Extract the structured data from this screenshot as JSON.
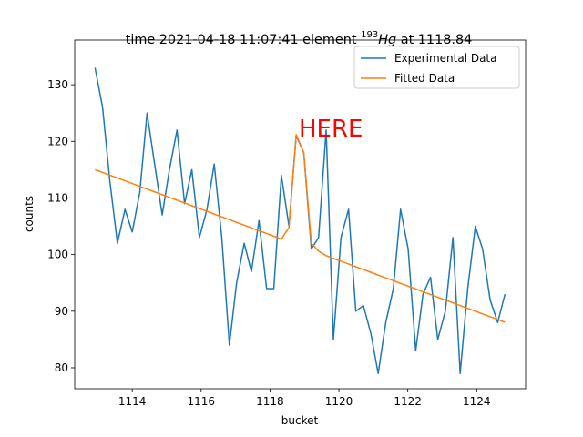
{
  "chart_data": {
    "type": "line",
    "title": {
      "prefix": "time 2021-04-18 11:07:41 element ",
      "mass": "193",
      "element": "Hg",
      "suffix": " at 1118.84"
    },
    "annotation": "HERE",
    "annotation_color": "#ff0000",
    "x_label": "bucket",
    "y_label": "counts",
    "x": [
      1112.92,
      1113.14,
      1113.35,
      1113.57,
      1113.79,
      1114.0,
      1114.22,
      1114.43,
      1114.65,
      1114.87,
      1115.08,
      1115.3,
      1115.52,
      1115.73,
      1115.95,
      1116.17,
      1116.38,
      1116.6,
      1116.82,
      1117.03,
      1117.25,
      1117.46,
      1117.68,
      1117.9,
      1118.11,
      1118.33,
      1118.55,
      1118.76,
      1118.98,
      1119.2,
      1119.41,
      1119.63,
      1119.84,
      1120.06,
      1120.28,
      1120.49,
      1120.71,
      1120.93,
      1121.14,
      1121.36,
      1121.58,
      1121.79,
      1122.01,
      1122.23,
      1122.44,
      1122.66,
      1122.87,
      1123.09,
      1123.31,
      1123.52,
      1123.74,
      1123.96,
      1124.17,
      1124.39,
      1124.61,
      1124.82
    ],
    "series": [
      {
        "name": "Experimental Data",
        "color": "#1f77b4",
        "values": [
          133,
          126,
          113,
          102,
          108,
          104,
          111,
          125,
          116,
          107,
          115,
          122,
          109,
          115,
          103,
          108,
          116,
          103,
          84,
          95,
          102,
          97,
          106,
          94,
          94,
          114,
          105,
          121,
          118,
          101,
          103,
          122,
          85,
          103,
          108,
          90,
          91,
          86,
          79,
          88,
          94,
          108,
          101,
          83,
          93,
          96,
          85,
          90,
          103,
          79,
          94,
          105,
          101,
          92,
          88,
          93
        ]
      },
      {
        "name": "Fitted Data",
        "color": "#ff7f0e",
        "values": [
          115,
          114.51,
          114.02,
          113.53,
          113.04,
          112.55,
          112.06,
          111.57,
          111.08,
          110.59,
          110.1,
          109.61,
          109.12,
          108.63,
          108.14,
          107.65,
          107.16,
          106.67,
          106.18,
          105.69,
          105.2,
          104.71,
          104.22,
          103.73,
          103.24,
          102.75,
          104.8,
          121.2,
          118,
          102,
          100.6,
          99.81,
          99.32,
          98.83,
          98.34,
          97.85,
          97.36,
          96.87,
          96.38,
          95.89,
          95.4,
          94.91,
          94.42,
          93.93,
          93.44,
          92.95,
          92.46,
          91.97,
          91.48,
          90.99,
          90.5,
          90.01,
          89.52,
          89.03,
          88.54,
          88.05
        ]
      }
    ],
    "xlim": [
      1112.33,
      1125.42
    ],
    "ylim": [
      76.3,
      137.9
    ],
    "xticks": [
      1114,
      1116,
      1118,
      1120,
      1122,
      1124
    ],
    "yticks": [
      80,
      90,
      100,
      110,
      120,
      130
    ],
    "legend": "upper right"
  }
}
